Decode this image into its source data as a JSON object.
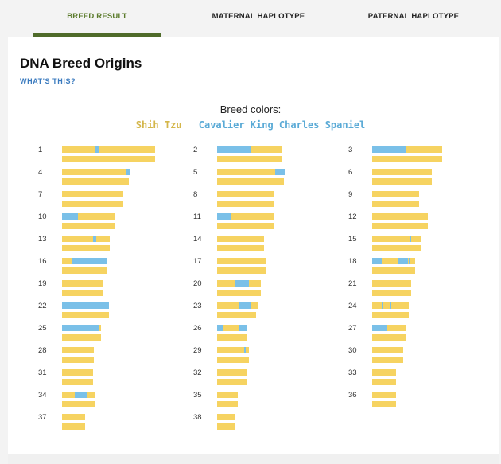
{
  "tabs": [
    {
      "label": "BREED RESULT",
      "active": true
    },
    {
      "label": "MATERNAL HAPLOTYPE",
      "active": false
    },
    {
      "label": "PATERNAL HAPLOTYPE",
      "active": false
    }
  ],
  "title": "DNA Breed Origins",
  "whats_this": "WHAT'S THIS?",
  "legend": {
    "title": "Breed colors:",
    "breeds": [
      {
        "name": "Shih Tzu",
        "color": "#d4b64a",
        "bar_color": "#f6d361"
      },
      {
        "name": "Cavalier King Charles Spaniel",
        "color": "#5aaad6",
        "bar_color": "#7ac0e8"
      }
    ]
  },
  "chromosomes": [
    {
      "label": "1",
      "bars": [
        {
          "len": 1.0,
          "segs": [
            [
              0.36,
              0.04
            ]
          ]
        },
        {
          "len": 1.0,
          "segs": []
        }
      ]
    },
    {
      "label": "2",
      "bars": [
        {
          "len": 0.7,
          "segs": [
            [
              0,
              0.36
            ]
          ]
        },
        {
          "len": 0.7,
          "segs": []
        }
      ]
    },
    {
      "label": "3",
      "bars": [
        {
          "len": 0.75,
          "segs": [
            [
              0,
              0.37
            ]
          ]
        },
        {
          "len": 0.75,
          "segs": []
        }
      ]
    },
    {
      "label": "4",
      "bars": [
        {
          "len": 0.72,
          "segs": [
            [
              0.68,
              0.04
            ]
          ]
        },
        {
          "len": 0.72,
          "segs": []
        }
      ]
    },
    {
      "label": "5",
      "bars": [
        {
          "len": 0.72,
          "segs": [
            [
              0.62,
              0.1
            ]
          ]
        },
        {
          "len": 0.72,
          "segs": []
        }
      ]
    },
    {
      "label": "6",
      "bars": [
        {
          "len": 0.64,
          "segs": []
        },
        {
          "len": 0.64,
          "segs": []
        }
      ]
    },
    {
      "label": "7",
      "bars": [
        {
          "len": 0.66,
          "segs": []
        },
        {
          "len": 0.66,
          "segs": []
        }
      ]
    },
    {
      "label": "8",
      "bars": [
        {
          "len": 0.61,
          "segs": []
        },
        {
          "len": 0.61,
          "segs": []
        }
      ]
    },
    {
      "label": "9",
      "bars": [
        {
          "len": 0.5,
          "segs": []
        },
        {
          "len": 0.5,
          "segs": []
        }
      ]
    },
    {
      "label": "10",
      "bars": [
        {
          "len": 0.56,
          "segs": [
            [
              0,
              0.17
            ]
          ]
        },
        {
          "len": 0.56,
          "segs": []
        }
      ]
    },
    {
      "label": "11",
      "bars": [
        {
          "len": 0.61,
          "segs": [
            [
              0,
              0.15
            ]
          ]
        },
        {
          "len": 0.61,
          "segs": []
        }
      ]
    },
    {
      "label": "12",
      "bars": [
        {
          "len": 0.6,
          "segs": []
        },
        {
          "len": 0.6,
          "segs": []
        }
      ]
    },
    {
      "label": "13",
      "bars": [
        {
          "len": 0.51,
          "segs": [
            [
              0.33,
              0.02
            ],
            [
              0.36,
              0.01
            ]
          ]
        },
        {
          "len": 0.51,
          "segs": []
        }
      ]
    },
    {
      "label": "14",
      "bars": [
        {
          "len": 0.5,
          "segs": []
        },
        {
          "len": 0.5,
          "segs": []
        }
      ]
    },
    {
      "label": "15",
      "bars": [
        {
          "len": 0.53,
          "segs": [
            [
              0.4,
              0.02
            ]
          ]
        },
        {
          "len": 0.53,
          "segs": []
        }
      ]
    },
    {
      "label": "16",
      "bars": [
        {
          "len": 0.48,
          "segs": [
            [
              0.11,
              0.37
            ]
          ]
        },
        {
          "len": 0.48,
          "segs": []
        }
      ]
    },
    {
      "label": "17",
      "bars": [
        {
          "len": 0.52,
          "segs": []
        },
        {
          "len": 0.52,
          "segs": []
        }
      ]
    },
    {
      "label": "18",
      "bars": [
        {
          "len": 0.46,
          "segs": [
            [
              0,
              0.1
            ],
            [
              0.28,
              0.1
            ],
            [
              0.39,
              0.01
            ]
          ]
        },
        {
          "len": 0.46,
          "segs": []
        }
      ]
    },
    {
      "label": "19",
      "bars": [
        {
          "len": 0.44,
          "segs": []
        },
        {
          "len": 0.44,
          "segs": []
        }
      ]
    },
    {
      "label": "20",
      "bars": [
        {
          "len": 0.47,
          "segs": [
            [
              0.19,
              0.15
            ]
          ]
        },
        {
          "len": 0.47,
          "segs": []
        }
      ]
    },
    {
      "label": "21",
      "bars": [
        {
          "len": 0.42,
          "segs": []
        },
        {
          "len": 0.42,
          "segs": []
        }
      ]
    },
    {
      "label": "22",
      "bars": [
        {
          "len": 0.5,
          "segs": [
            [
              0,
              0.5
            ]
          ]
        },
        {
          "len": 0.5,
          "segs": []
        }
      ]
    },
    {
      "label": "23",
      "bars": [
        {
          "len": 0.44,
          "segs": [
            [
              0.24,
              0.13
            ],
            [
              0.39,
              0.01
            ]
          ]
        },
        {
          "len": 0.42,
          "segs": []
        }
      ]
    },
    {
      "label": "24",
      "bars": [
        {
          "len": 0.39,
          "segs": [
            [
              0.1,
              0.02
            ],
            [
              0.2,
              0.01
            ]
          ]
        },
        {
          "len": 0.39,
          "segs": []
        }
      ]
    },
    {
      "label": "25",
      "bars": [
        {
          "len": 0.42,
          "segs": [
            [
              0,
              0.4
            ]
          ]
        },
        {
          "len": 0.42,
          "segs": []
        }
      ]
    },
    {
      "label": "26",
      "bars": [
        {
          "len": 0.32,
          "segs": [
            [
              0,
              0.06
            ],
            [
              0.23,
              0.09
            ]
          ]
        },
        {
          "len": 0.32,
          "segs": []
        }
      ]
    },
    {
      "label": "27",
      "bars": [
        {
          "len": 0.37,
          "segs": [
            [
              0,
              0.16
            ]
          ]
        },
        {
          "len": 0.37,
          "segs": []
        }
      ]
    },
    {
      "label": "28",
      "bars": [
        {
          "len": 0.34,
          "segs": []
        },
        {
          "len": 0.34,
          "segs": []
        }
      ]
    },
    {
      "label": "29",
      "bars": [
        {
          "len": 0.34,
          "segs": [
            [
              0.29,
              0.02
            ]
          ]
        },
        {
          "len": 0.34,
          "segs": []
        }
      ]
    },
    {
      "label": "30",
      "bars": [
        {
          "len": 0.33,
          "segs": []
        },
        {
          "len": 0.33,
          "segs": []
        }
      ]
    },
    {
      "label": "31",
      "bars": [
        {
          "len": 0.33,
          "segs": []
        },
        {
          "len": 0.33,
          "segs": []
        }
      ]
    },
    {
      "label": "32",
      "bars": [
        {
          "len": 0.32,
          "segs": []
        },
        {
          "len": 0.32,
          "segs": []
        }
      ]
    },
    {
      "label": "33",
      "bars": [
        {
          "len": 0.26,
          "segs": []
        },
        {
          "len": 0.26,
          "segs": []
        }
      ]
    },
    {
      "label": "34",
      "bars": [
        {
          "len": 0.35,
          "segs": [
            [
              0.14,
              0.14
            ]
          ]
        },
        {
          "len": 0.35,
          "segs": []
        }
      ]
    },
    {
      "label": "35",
      "bars": [
        {
          "len": 0.22,
          "segs": []
        },
        {
          "len": 0.22,
          "segs": []
        }
      ]
    },
    {
      "label": "36",
      "bars": [
        {
          "len": 0.26,
          "segs": []
        },
        {
          "len": 0.26,
          "segs": []
        }
      ]
    },
    {
      "label": "37",
      "bars": [
        {
          "len": 0.25,
          "segs": []
        },
        {
          "len": 0.25,
          "segs": []
        }
      ]
    },
    {
      "label": "38",
      "bars": [
        {
          "len": 0.19,
          "segs": []
        },
        {
          "len": 0.19,
          "segs": []
        }
      ]
    }
  ]
}
